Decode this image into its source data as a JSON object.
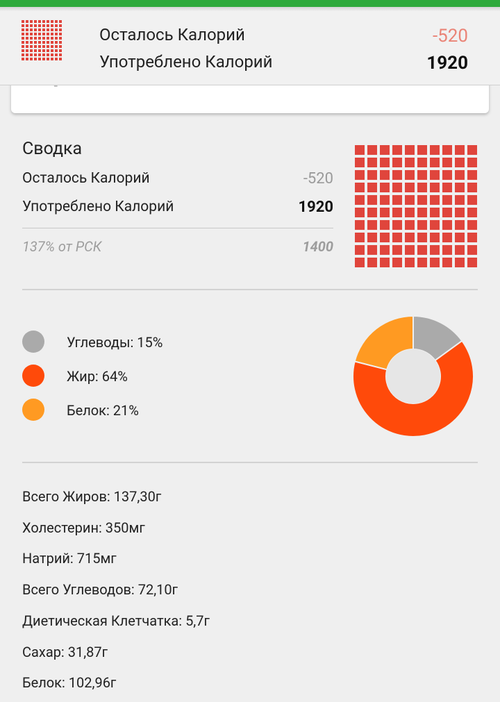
{
  "header": {
    "remaining_label": "Осталось Калорий",
    "remaining_value": "-520",
    "consumed_label": "Употреблено Калорий",
    "consumed_value": "1920"
  },
  "summary": {
    "title": "Сводка",
    "remaining_label": "Осталось Калорий",
    "remaining_value": "-520",
    "consumed_label": "Употреблено Калорий",
    "consumed_value": "1920",
    "rsk_label": "137% от РСК",
    "rsk_value": "1400"
  },
  "macros": [
    {
      "label": "Углеводы: 15%",
      "percent": 15,
      "color": "#aaaaaa"
    },
    {
      "label": "Жир: 64%",
      "percent": 64,
      "color": "#ff4a0a"
    },
    {
      "label": "Белок: 21%",
      "percent": 21,
      "color": "#ff9a22"
    }
  ],
  "nutrients": [
    "Всего Жиров: 137,30г",
    "Холестерин: 350мг",
    "Натрий: 715мг",
    "Всего Углеводов: 72,10г",
    "Диетическая Клетчатка: 5,7г",
    "Сахар: 31,87г",
    "Белок: 102,96г"
  ],
  "colors": {
    "accent_green": "#2eaa3c",
    "calorie_grid": "#e0453c",
    "remaining_negative": "#ea8477"
  },
  "calorie_grid_fill_percent": 100
}
